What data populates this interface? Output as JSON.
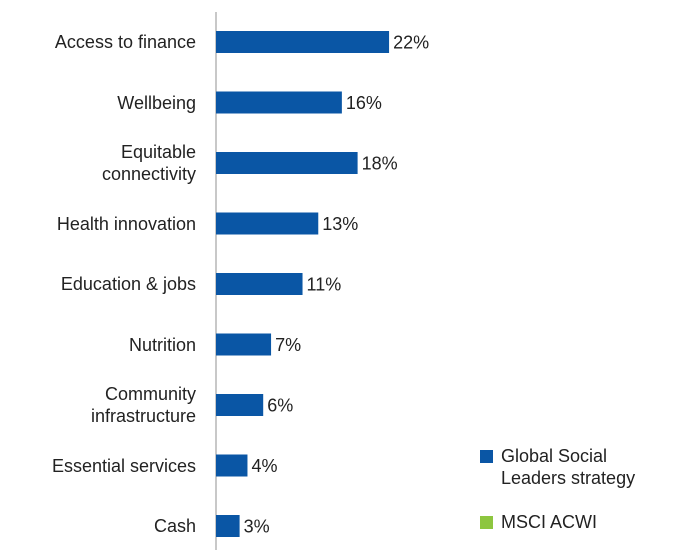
{
  "chart_data": {
    "type": "bar",
    "orientation": "horizontal",
    "categories": [
      "Access to finance",
      "Wellbeing",
      "Equitable\nconnectivity",
      "Health innovation",
      "Education & jobs",
      "Nutrition",
      "Community\ninfrastructure",
      "Essential services",
      "Cash"
    ],
    "series": [
      {
        "name": "Global Social\nLeaders strategy",
        "color": "#0a56a5",
        "values": [
          22,
          16,
          18,
          13,
          11,
          7,
          6,
          4,
          3
        ],
        "value_labels": [
          "22%",
          "16%",
          "18%",
          "13%",
          "11%",
          "7%",
          "6%",
          "4%",
          "3%"
        ]
      },
      {
        "name": "MSCI ACWI",
        "color": "#8dc63f",
        "values": [
          null,
          null,
          null,
          null,
          null,
          null,
          null,
          null,
          null
        ]
      }
    ],
    "xlim": [
      0,
      30
    ],
    "legend": "lower right"
  }
}
